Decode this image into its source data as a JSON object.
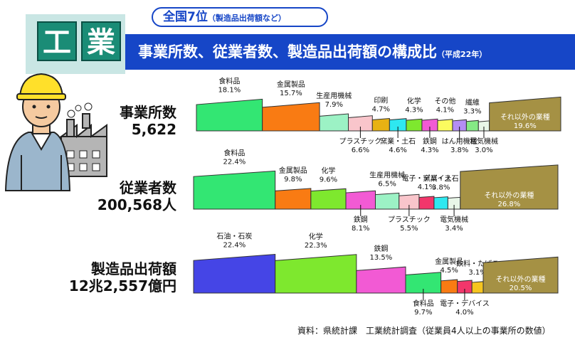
{
  "header": {
    "tile_chars": [
      "工",
      "業"
    ],
    "rank_big": "全国7位",
    "rank_small": "（製造品出荷額など）",
    "title": "事業所数、従業者数、製造品出荷額の構成比",
    "title_year": "（平成22年）"
  },
  "source": "資料：県統計課　工業統計調査（従業員4人以上の事業所の数値）",
  "colors": {
    "食料品": "#33e673",
    "金属製品": "#f97b13",
    "生産用機械": "#9cf2c5",
    "プラスチック": "#f9c5cb",
    "印刷": "#e8b213",
    "窯業・土石": "#2ee8f0",
    "化学": "#7ee82e",
    "鉄鋼": "#f25ad4",
    "その他": "#fbfb5f",
    "はん用機械": "#b48ef4",
    "繊維": "#85e985",
    "電気機械": "#e8f6e8",
    "それ以外の業種": "#a59144",
    "電子・デバイス": "#f2366b",
    "石油・石炭": "#4545e6",
    "飲料・たばこ": "#f6c51f"
  },
  "chart_data": [
    {
      "type": "bar",
      "title": "事業所数",
      "total": "5,622",
      "categories": [
        "食料品",
        "金属製品",
        "生産用機械",
        "プラスチック",
        "印刷",
        "窯業・土石",
        "化学",
        "鉄鋼",
        "その他",
        "はん用機械",
        "繊維",
        "電気機械",
        "それ以外の業種"
      ],
      "values": [
        18.1,
        15.7,
        7.9,
        6.6,
        4.7,
        4.6,
        4.3,
        4.3,
        4.1,
        3.8,
        3.3,
        3.0,
        19.6
      ],
      "value_labels": [
        "18.1%",
        "15.7%",
        "7.9%",
        "6.6%",
        "4.7%",
        "4.6%",
        "4.3%",
        "4.3%",
        "4.1%",
        "3.8%",
        "3.3%",
        "3.0%",
        "19.6%"
      ]
    },
    {
      "type": "bar",
      "title": "従業者数",
      "total": "200,568人",
      "categories": [
        "食料品",
        "金属製品",
        "化学",
        "鉄鋼",
        "生産用機械",
        "プラスチック",
        "電子・デバイス",
        "窯業・土石",
        "電気機械",
        "それ以外の業種"
      ],
      "values": [
        22.4,
        9.8,
        9.6,
        8.1,
        6.5,
        5.5,
        4.1,
        3.8,
        3.4,
        26.8
      ],
      "value_labels": [
        "22.4%",
        "9.8%",
        "9.6%",
        "8.1%",
        "6.5%",
        "5.5%",
        "4.1%",
        "3.8%",
        "3.4%",
        "26.8%"
      ]
    },
    {
      "type": "bar",
      "title": "製造品出荷額",
      "total": "12兆2,557億円",
      "categories": [
        "石油・石炭",
        "化学",
        "鉄鋼",
        "食料品",
        "金属製品",
        "電子・デバイス",
        "飲料・たばこ",
        "それ以外の業種"
      ],
      "values": [
        22.4,
        22.3,
        13.5,
        9.7,
        4.5,
        4.0,
        3.1,
        20.5
      ],
      "value_labels": [
        "22.4%",
        "22.3%",
        "13.5%",
        "9.7%",
        "4.5%",
        "4.0%",
        "3.1%",
        "20.5%"
      ]
    }
  ]
}
